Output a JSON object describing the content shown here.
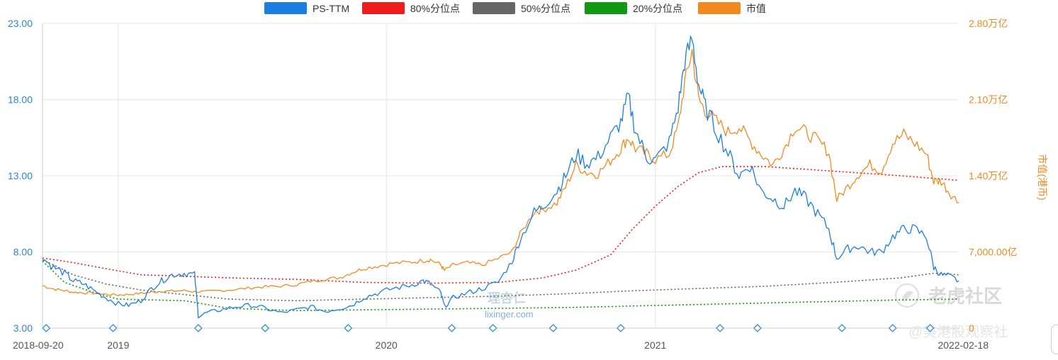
{
  "legend": {
    "items": [
      {
        "label": "PS-TTM",
        "color": "#1a7fe0",
        "style": "solid"
      },
      {
        "label": "80%分位点",
        "color": "#ee1c1c",
        "style": "dotted"
      },
      {
        "label": "50%分位点",
        "color": "#666666",
        "style": "dotted"
      },
      {
        "label": "20%分位点",
        "color": "#119911",
        "style": "dotted"
      },
      {
        "label": "市值",
        "color": "#f28a1f",
        "style": "solid"
      }
    ]
  },
  "axes": {
    "left_ticks": [
      "23.00",
      "18.00",
      "13.00",
      "8.00",
      "3.00"
    ],
    "right_ticks": [
      "2.80万亿",
      "2.10万亿",
      "1.40万亿",
      "7,000.00亿",
      "0"
    ],
    "right_title": "市值(港币)",
    "x_ticks": [
      "2018-09-20",
      "2019",
      "2020",
      "2021",
      "2022-02-18"
    ]
  },
  "watermark": {
    "logo": "理杏仁",
    "site": "lixinger.com",
    "tiger_title": "老虎社区",
    "tiger_sub": "@美港股观察社"
  },
  "colors": {
    "ps": "#1a7fe0",
    "mcap": "#f28a1f",
    "p80": "#ee1c1c",
    "p50": "#666666",
    "p20": "#119911",
    "grid": "#e6e6e6",
    "marker": "#3a8fc6"
  },
  "chart_data": {
    "type": "line",
    "x_start": "2018-09-20",
    "x_end": "2022-02-18",
    "y_left": {
      "min": 3,
      "max": 23,
      "ticks": [
        3,
        8,
        13,
        18,
        23
      ]
    },
    "y_right": {
      "min": 0,
      "max": 28000,
      "unit": "亿港币",
      "ticks": [
        0,
        7000,
        14000,
        21000,
        28000
      ]
    },
    "series": [
      {
        "name": "PS-TTM",
        "axis": "left",
        "points": [
          [
            "2018-09-20",
            7.6
          ],
          [
            "2018-10-05",
            7.0
          ],
          [
            "2018-10-20",
            6.6
          ],
          [
            "2018-11-01",
            6.1
          ],
          [
            "2018-11-15",
            5.9
          ],
          [
            "2018-12-01",
            5.4
          ],
          [
            "2018-12-15",
            5.0
          ],
          [
            "2019-01-01",
            4.6
          ],
          [
            "2019-01-15",
            4.5
          ],
          [
            "2019-02-01",
            4.8
          ],
          [
            "2019-02-15",
            5.6
          ],
          [
            "2019-03-01",
            6.1
          ],
          [
            "2019-03-15",
            6.5
          ],
          [
            "2019-04-01",
            6.6
          ],
          [
            "2019-04-15",
            6.5
          ],
          [
            "2019-04-20",
            3.8
          ],
          [
            "2019-05-01",
            4.0
          ],
          [
            "2019-05-20",
            4.2
          ],
          [
            "2019-06-10",
            4.4
          ],
          [
            "2019-07-01",
            4.5
          ],
          [
            "2019-07-20",
            4.3
          ],
          [
            "2019-08-10",
            4.0
          ],
          [
            "2019-09-01",
            4.2
          ],
          [
            "2019-09-20",
            4.4
          ],
          [
            "2019-10-10",
            4.1
          ],
          [
            "2019-10-30",
            4.3
          ],
          [
            "2019-11-15",
            4.5
          ],
          [
            "2019-12-01",
            5.0
          ],
          [
            "2019-12-20",
            5.3
          ],
          [
            "2020-01-10",
            5.6
          ],
          [
            "2020-02-01",
            5.8
          ],
          [
            "2020-02-20",
            6.1
          ],
          [
            "2020-03-01",
            5.9
          ],
          [
            "2020-03-15",
            5.3
          ],
          [
            "2020-03-20",
            4.4
          ],
          [
            "2020-04-01",
            5.0
          ],
          [
            "2020-04-20",
            5.3
          ],
          [
            "2020-05-10",
            5.6
          ],
          [
            "2020-06-01",
            6.0
          ],
          [
            "2020-06-20",
            7.4
          ],
          [
            "2020-07-01",
            8.8
          ],
          [
            "2020-07-20",
            10.6
          ],
          [
            "2020-08-01",
            11.0
          ],
          [
            "2020-08-20",
            12.0
          ],
          [
            "2020-09-01",
            13.0
          ],
          [
            "2020-09-15",
            14.4
          ],
          [
            "2020-09-30",
            13.8
          ],
          [
            "2020-10-15",
            14.2
          ],
          [
            "2020-11-01",
            15.5
          ],
          [
            "2020-11-15",
            16.5
          ],
          [
            "2020-11-25",
            18.2
          ],
          [
            "2020-12-05",
            16.0
          ],
          [
            "2020-12-20",
            14.2
          ],
          [
            "2021-01-01",
            14.0
          ],
          [
            "2021-01-20",
            15.2
          ],
          [
            "2021-02-01",
            17.5
          ],
          [
            "2021-02-10",
            20.5
          ],
          [
            "2021-02-20",
            22.0
          ],
          [
            "2021-03-01",
            19.0
          ],
          [
            "2021-03-10",
            17.5
          ],
          [
            "2021-03-25",
            16.0
          ],
          [
            "2021-04-10",
            14.5
          ],
          [
            "2021-04-25",
            13.0
          ],
          [
            "2021-05-10",
            13.7
          ],
          [
            "2021-05-25",
            12.0
          ],
          [
            "2021-06-10",
            11.5
          ],
          [
            "2021-06-25",
            11.0
          ],
          [
            "2021-07-10",
            12.0
          ],
          [
            "2021-07-25",
            11.5
          ],
          [
            "2021-08-10",
            10.5
          ],
          [
            "2021-08-25",
            9.5
          ],
          [
            "2021-09-05",
            7.6
          ],
          [
            "2021-09-20",
            8.2
          ],
          [
            "2021-10-05",
            8.4
          ],
          [
            "2021-10-20",
            8.0
          ],
          [
            "2021-11-05",
            8.0
          ],
          [
            "2021-11-20",
            9.0
          ],
          [
            "2021-12-05",
            9.5
          ],
          [
            "2021-12-20",
            9.5
          ],
          [
            "2022-01-05",
            9.0
          ],
          [
            "2022-01-15",
            7.0
          ],
          [
            "2022-01-25",
            6.5
          ],
          [
            "2022-02-05",
            6.4
          ],
          [
            "2022-02-18",
            6.1
          ]
        ]
      },
      {
        "name": "市值",
        "axis": "right",
        "points": [
          [
            "2018-09-20",
            3900
          ],
          [
            "2018-10-05",
            3600
          ],
          [
            "2018-10-20",
            3450
          ],
          [
            "2018-11-01",
            3300
          ],
          [
            "2018-11-15",
            3250
          ],
          [
            "2018-12-01",
            3200
          ],
          [
            "2018-12-15",
            3100
          ],
          [
            "2019-01-01",
            3050
          ],
          [
            "2019-01-15",
            3100
          ],
          [
            "2019-02-01",
            3200
          ],
          [
            "2019-02-15",
            3300
          ],
          [
            "2019-03-01",
            3400
          ],
          [
            "2019-03-15",
            3400
          ],
          [
            "2019-04-01",
            3450
          ],
          [
            "2019-04-15",
            3350
          ],
          [
            "2019-05-01",
            3350
          ],
          [
            "2019-05-20",
            3450
          ],
          [
            "2019-06-10",
            3550
          ],
          [
            "2019-07-01",
            3700
          ],
          [
            "2019-07-20",
            3800
          ],
          [
            "2019-08-10",
            3850
          ],
          [
            "2019-09-01",
            4000
          ],
          [
            "2019-09-20",
            4300
          ],
          [
            "2019-10-10",
            4500
          ],
          [
            "2019-10-30",
            4650
          ],
          [
            "2019-11-15",
            5100
          ],
          [
            "2019-12-01",
            5500
          ],
          [
            "2019-12-20",
            5700
          ],
          [
            "2020-01-10",
            5950
          ],
          [
            "2020-02-01",
            6050
          ],
          [
            "2020-02-20",
            6200
          ],
          [
            "2020-03-01",
            6300
          ],
          [
            "2020-03-15",
            5800
          ],
          [
            "2020-03-20",
            5300
          ],
          [
            "2020-04-01",
            5800
          ],
          [
            "2020-04-20",
            6000
          ],
          [
            "2020-05-10",
            5800
          ],
          [
            "2020-06-01",
            6400
          ],
          [
            "2020-06-20",
            7000
          ],
          [
            "2020-07-01",
            8600
          ],
          [
            "2020-07-20",
            10700
          ],
          [
            "2020-08-01",
            10900
          ],
          [
            "2020-08-20",
            11500
          ],
          [
            "2020-09-01",
            13000
          ],
          [
            "2020-09-15",
            15000
          ],
          [
            "2020-09-30",
            14300
          ],
          [
            "2020-10-15",
            14200
          ],
          [
            "2020-11-01",
            15400
          ],
          [
            "2020-11-15",
            16500
          ],
          [
            "2020-11-25",
            17500
          ],
          [
            "2020-12-05",
            16500
          ],
          [
            "2020-12-20",
            16000
          ],
          [
            "2021-01-01",
            15500
          ],
          [
            "2021-01-20",
            16000
          ],
          [
            "2021-02-01",
            18500
          ],
          [
            "2021-02-10",
            22500
          ],
          [
            "2021-02-20",
            25500
          ],
          [
            "2021-03-01",
            21000
          ],
          [
            "2021-03-10",
            20000
          ],
          [
            "2021-03-25",
            19000
          ],
          [
            "2021-04-10",
            18000
          ],
          [
            "2021-04-25",
            18500
          ],
          [
            "2021-05-10",
            17200
          ],
          [
            "2021-05-25",
            16000
          ],
          [
            "2021-06-10",
            15000
          ],
          [
            "2021-06-25",
            16500
          ],
          [
            "2021-07-10",
            18500
          ],
          [
            "2021-07-25",
            18000
          ],
          [
            "2021-08-10",
            17200
          ],
          [
            "2021-08-25",
            16200
          ],
          [
            "2021-09-05",
            11800
          ],
          [
            "2021-09-20",
            13000
          ],
          [
            "2021-10-05",
            14200
          ],
          [
            "2021-10-20",
            15000
          ],
          [
            "2021-11-05",
            14500
          ],
          [
            "2021-11-20",
            17000
          ],
          [
            "2021-12-05",
            17800
          ],
          [
            "2021-12-20",
            17000
          ],
          [
            "2022-01-05",
            16000
          ],
          [
            "2022-01-15",
            13500
          ],
          [
            "2022-01-25",
            13500
          ],
          [
            "2022-02-05",
            12500
          ],
          [
            "2022-02-18",
            11500
          ]
        ]
      },
      {
        "name": "80%分位点",
        "axis": "left",
        "style": "dotted",
        "points": [
          [
            "2018-09-20",
            7.6
          ],
          [
            "2018-11-01",
            7.3
          ],
          [
            "2018-12-15",
            6.9
          ],
          [
            "2019-02-01",
            6.5
          ],
          [
            "2019-04-01",
            6.4
          ],
          [
            "2019-06-01",
            6.3
          ],
          [
            "2019-09-01",
            6.2
          ],
          [
            "2019-12-01",
            6.0
          ],
          [
            "2020-03-01",
            5.95
          ],
          [
            "2020-06-01",
            6.0
          ],
          [
            "2020-08-01",
            6.3
          ],
          [
            "2020-09-15",
            6.8
          ],
          [
            "2020-11-01",
            7.8
          ],
          [
            "2020-12-01",
            9.5
          ],
          [
            "2021-01-01",
            11.0
          ],
          [
            "2021-02-01",
            12.3
          ],
          [
            "2021-03-01",
            13.2
          ],
          [
            "2021-04-01",
            13.6
          ],
          [
            "2021-06-01",
            13.6
          ],
          [
            "2021-08-01",
            13.4
          ],
          [
            "2021-10-01",
            13.2
          ],
          [
            "2021-12-01",
            13.0
          ],
          [
            "2022-02-18",
            12.7
          ]
        ]
      },
      {
        "name": "50%分位点",
        "axis": "left",
        "style": "dotted",
        "points": [
          [
            "2018-09-20",
            7.5
          ],
          [
            "2018-11-01",
            6.5
          ],
          [
            "2018-12-15",
            5.9
          ],
          [
            "2019-02-01",
            5.5
          ],
          [
            "2019-04-01",
            5.2
          ],
          [
            "2019-06-01",
            4.9
          ],
          [
            "2019-09-01",
            4.8
          ],
          [
            "2019-12-01",
            4.9
          ],
          [
            "2020-03-01",
            5.0
          ],
          [
            "2020-06-01",
            5.1
          ],
          [
            "2020-09-01",
            5.25
          ],
          [
            "2020-12-01",
            5.45
          ],
          [
            "2021-03-01",
            5.6
          ],
          [
            "2021-06-01",
            5.75
          ],
          [
            "2021-09-01",
            6.0
          ],
          [
            "2021-12-01",
            6.3
          ],
          [
            "2022-01-15",
            6.6
          ],
          [
            "2022-02-18",
            6.5
          ]
        ]
      },
      {
        "name": "20%分位点",
        "axis": "left",
        "style": "dotted",
        "points": [
          [
            "2018-09-20",
            7.4
          ],
          [
            "2018-10-20",
            6.0
          ],
          [
            "2018-12-01",
            5.3
          ],
          [
            "2019-01-01",
            4.9
          ],
          [
            "2019-04-01",
            4.8
          ],
          [
            "2019-06-01",
            4.3
          ],
          [
            "2019-09-01",
            4.15
          ],
          [
            "2019-12-01",
            4.2
          ],
          [
            "2020-03-01",
            4.25
          ],
          [
            "2020-06-01",
            4.3
          ],
          [
            "2020-09-01",
            4.35
          ],
          [
            "2020-12-01",
            4.45
          ],
          [
            "2021-03-01",
            4.55
          ],
          [
            "2021-06-01",
            4.65
          ],
          [
            "2021-09-01",
            4.75
          ],
          [
            "2021-12-01",
            4.85
          ],
          [
            "2022-02-18",
            4.9
          ]
        ]
      }
    ],
    "event_markers": [
      "2018-09-25",
      "2018-12-25",
      "2019-04-20",
      "2019-07-20",
      "2019-11-10",
      "2020-03-30",
      "2020-05-25",
      "2020-08-15",
      "2020-11-15",
      "2021-03-30",
      "2021-05-20",
      "2021-09-12",
      "2021-11-20",
      "2022-01-10"
    ]
  }
}
